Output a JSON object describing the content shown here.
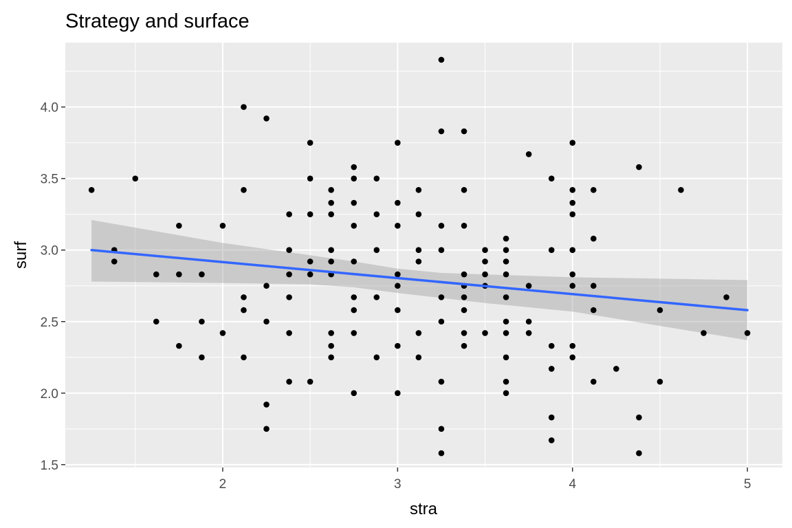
{
  "chart_data": {
    "type": "scatter",
    "title": "Strategy and surface",
    "xlabel": "stra",
    "ylabel": "surf",
    "xlim": [
      1.1,
      5.2
    ],
    "ylim": [
      1.48,
      4.45
    ],
    "x_ticks": [
      2,
      3,
      4,
      5
    ],
    "x_tick_labels": [
      "2",
      "3",
      "4",
      "5"
    ],
    "y_ticks": [
      1.5,
      2.0,
      2.5,
      3.0,
      3.5,
      4.0
    ],
    "y_tick_labels": [
      "1.5",
      "2.0",
      "2.5",
      "3.0",
      "3.5",
      "4.0"
    ],
    "grid": true,
    "background": "#ebebeb",
    "point_color": "#000000",
    "smooth": {
      "method": "lm",
      "color": "#3366ff",
      "band_color": "#999999",
      "x_range": [
        1.25,
        5.0
      ],
      "line": [
        [
          1.25,
          3.0
        ],
        [
          5.0,
          2.58
        ]
      ],
      "band_upper": [
        [
          1.25,
          3.21
        ],
        [
          2.0,
          3.05
        ],
        [
          2.75,
          2.92
        ],
        [
          3.0,
          2.87
        ],
        [
          3.25,
          2.84
        ],
        [
          3.5,
          2.83
        ],
        [
          4.0,
          2.81
        ],
        [
          5.0,
          2.79
        ]
      ],
      "band_lower": [
        [
          1.25,
          2.78
        ],
        [
          2.0,
          2.77
        ],
        [
          2.5,
          2.76
        ],
        [
          2.75,
          2.74
        ],
        [
          3.0,
          2.7
        ],
        [
          3.5,
          2.63
        ],
        [
          4.0,
          2.57
        ],
        [
          5.0,
          2.37
        ]
      ]
    },
    "points": [
      [
        1.25,
        3.42
      ],
      [
        1.38,
        3.0
      ],
      [
        1.38,
        2.92
      ],
      [
        1.5,
        3.5
      ],
      [
        1.62,
        2.83
      ],
      [
        1.62,
        2.5
      ],
      [
        1.75,
        3.17
      ],
      [
        1.75,
        2.83
      ],
      [
        1.75,
        2.33
      ],
      [
        1.88,
        2.83
      ],
      [
        1.88,
        2.5
      ],
      [
        1.88,
        2.25
      ],
      [
        2.0,
        3.17
      ],
      [
        2.0,
        2.42
      ],
      [
        2.12,
        4.0
      ],
      [
        2.12,
        3.42
      ],
      [
        2.12,
        2.67
      ],
      [
        2.12,
        2.58
      ],
      [
        2.12,
        2.25
      ],
      [
        2.25,
        3.92
      ],
      [
        2.25,
        2.75
      ],
      [
        2.25,
        2.5
      ],
      [
        2.25,
        1.92
      ],
      [
        2.25,
        1.75
      ],
      [
        2.38,
        3.25
      ],
      [
        2.38,
        3.0
      ],
      [
        2.38,
        2.83
      ],
      [
        2.38,
        2.67
      ],
      [
        2.38,
        2.42
      ],
      [
        2.38,
        2.08
      ],
      [
        2.5,
        3.75
      ],
      [
        2.5,
        3.5
      ],
      [
        2.5,
        3.25
      ],
      [
        2.5,
        2.92
      ],
      [
        2.5,
        2.83
      ],
      [
        2.5,
        2.08
      ],
      [
        2.62,
        3.42
      ],
      [
        2.62,
        3.33
      ],
      [
        2.62,
        3.25
      ],
      [
        2.62,
        3.0
      ],
      [
        2.62,
        2.92
      ],
      [
        2.62,
        2.83
      ],
      [
        2.62,
        2.42
      ],
      [
        2.62,
        2.33
      ],
      [
        2.62,
        2.25
      ],
      [
        2.75,
        3.58
      ],
      [
        2.75,
        3.5
      ],
      [
        2.75,
        3.33
      ],
      [
        2.75,
        3.17
      ],
      [
        2.75,
        2.92
      ],
      [
        2.75,
        2.67
      ],
      [
        2.75,
        2.58
      ],
      [
        2.75,
        2.42
      ],
      [
        2.75,
        2.0
      ],
      [
        2.88,
        3.5
      ],
      [
        2.88,
        3.25
      ],
      [
        2.88,
        3.0
      ],
      [
        2.88,
        2.67
      ],
      [
        2.88,
        2.25
      ],
      [
        3.0,
        3.75
      ],
      [
        3.0,
        3.33
      ],
      [
        3.0,
        3.17
      ],
      [
        3.0,
        2.83
      ],
      [
        3.0,
        2.75
      ],
      [
        3.0,
        2.58
      ],
      [
        3.0,
        2.33
      ],
      [
        3.0,
        2.0
      ],
      [
        3.12,
        3.42
      ],
      [
        3.12,
        3.25
      ],
      [
        3.12,
        3.0
      ],
      [
        3.12,
        2.92
      ],
      [
        3.12,
        2.42
      ],
      [
        3.12,
        2.25
      ],
      [
        3.25,
        4.33
      ],
      [
        3.25,
        3.83
      ],
      [
        3.25,
        3.17
      ],
      [
        3.25,
        3.0
      ],
      [
        3.25,
        2.67
      ],
      [
        3.25,
        2.5
      ],
      [
        3.25,
        2.08
      ],
      [
        3.25,
        1.75
      ],
      [
        3.25,
        1.58
      ],
      [
        3.38,
        3.83
      ],
      [
        3.38,
        3.42
      ],
      [
        3.38,
        3.17
      ],
      [
        3.38,
        2.83
      ],
      [
        3.38,
        2.75
      ],
      [
        3.38,
        2.67
      ],
      [
        3.38,
        2.58
      ],
      [
        3.38,
        2.42
      ],
      [
        3.38,
        2.33
      ],
      [
        3.5,
        3.0
      ],
      [
        3.5,
        2.92
      ],
      [
        3.5,
        2.83
      ],
      [
        3.5,
        2.75
      ],
      [
        3.5,
        2.42
      ],
      [
        3.62,
        3.08
      ],
      [
        3.62,
        3.0
      ],
      [
        3.62,
        2.92
      ],
      [
        3.62,
        2.83
      ],
      [
        3.62,
        2.67
      ],
      [
        3.62,
        2.5
      ],
      [
        3.62,
        2.42
      ],
      [
        3.62,
        2.25
      ],
      [
        3.62,
        2.08
      ],
      [
        3.62,
        2.0
      ],
      [
        3.75,
        3.67
      ],
      [
        3.75,
        2.75
      ],
      [
        3.75,
        2.5
      ],
      [
        3.75,
        2.42
      ],
      [
        3.88,
        3.5
      ],
      [
        3.88,
        3.0
      ],
      [
        3.88,
        2.33
      ],
      [
        3.88,
        2.17
      ],
      [
        3.88,
        1.83
      ],
      [
        3.88,
        1.67
      ],
      [
        4.0,
        3.75
      ],
      [
        4.0,
        3.42
      ],
      [
        4.0,
        3.33
      ],
      [
        4.0,
        3.25
      ],
      [
        4.0,
        3.0
      ],
      [
        4.0,
        2.83
      ],
      [
        4.0,
        2.75
      ],
      [
        4.0,
        2.33
      ],
      [
        4.0,
        2.25
      ],
      [
        4.12,
        3.42
      ],
      [
        4.12,
        3.08
      ],
      [
        4.12,
        2.75
      ],
      [
        4.12,
        2.58
      ],
      [
        4.12,
        2.08
      ],
      [
        4.25,
        2.17
      ],
      [
        4.38,
        3.58
      ],
      [
        4.38,
        1.83
      ],
      [
        4.38,
        1.58
      ],
      [
        4.5,
        2.58
      ],
      [
        4.5,
        2.08
      ],
      [
        4.62,
        3.42
      ],
      [
        4.75,
        2.42
      ],
      [
        4.88,
        2.67
      ],
      [
        5.0,
        2.42
      ]
    ]
  }
}
